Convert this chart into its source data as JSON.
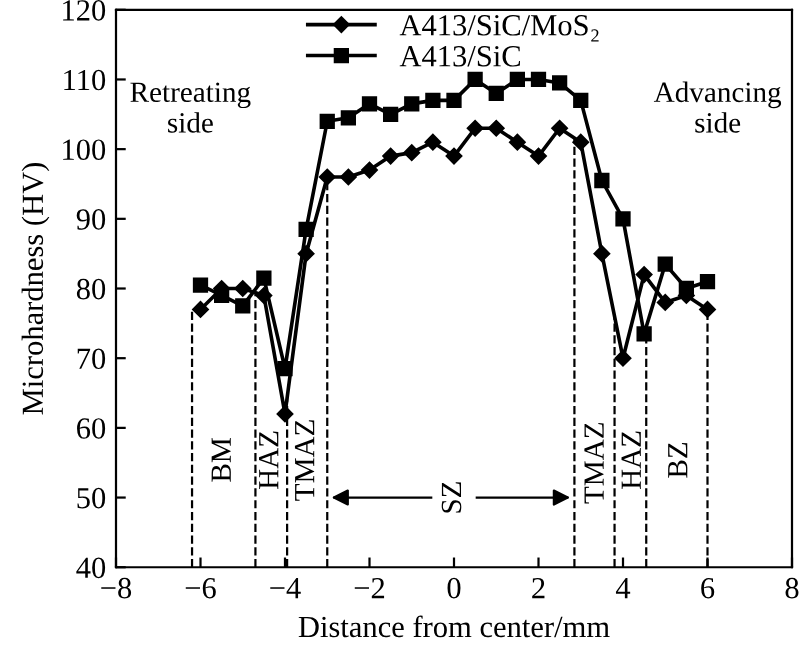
{
  "chart_data": {
    "type": "line",
    "xlabel": "Distance from center/mm",
    "ylabel": "Microhardness (HV)",
    "x": [
      -6,
      -5.5,
      -5,
      -4.5,
      -4,
      -3.5,
      -3,
      -2.5,
      -2,
      -1.5,
      -1,
      -0.5,
      0,
      0.5,
      1,
      1.5,
      2,
      2.5,
      3,
      3.5,
      4,
      4.5,
      5,
      5.5,
      6
    ],
    "series": [
      {
        "name": "A413/SiC/MoS₂",
        "color": "#000000",
        "marker": "diamond",
        "values": [
          77,
          80,
          80,
          79,
          62,
          85,
          96,
          96,
          97,
          99,
          99.5,
          101,
          99,
          103,
          103,
          101,
          99,
          103,
          101,
          85,
          70,
          82,
          78,
          79,
          77
        ]
      },
      {
        "name": "A413/SiC",
        "color": "#000000",
        "marker": "square",
        "values": [
          80.5,
          79,
          77.5,
          81.5,
          68.5,
          88.5,
          104,
          104.5,
          106.5,
          105,
          106.5,
          107,
          107,
          110,
          108,
          110,
          110,
          109.5,
          107,
          95.5,
          90,
          73.5,
          83.5,
          80,
          81
        ]
      }
    ],
    "xlim": [
      -8,
      8
    ],
    "xticks": [
      -8,
      -6,
      -4,
      -2,
      0,
      2,
      4,
      6,
      8
    ],
    "ylim": [
      40,
      120
    ],
    "yticks": [
      40,
      50,
      60,
      70,
      80,
      90,
      100,
      110,
      120
    ],
    "grid": false,
    "legend": "top",
    "line_style": "solid",
    "ref_lines": [
      {
        "axis": "x",
        "value": -6.2,
        "color": "#000000",
        "line_style": "dashed"
      },
      {
        "axis": "x",
        "value": -4.7,
        "color": "#000000",
        "line_style": "dashed"
      },
      {
        "axis": "x",
        "value": -3.95,
        "color": "#000000",
        "line_style": "dashed"
      },
      {
        "axis": "x",
        "value": -3,
        "color": "#000000",
        "line_style": "dashed"
      },
      {
        "axis": "x",
        "value": 2.85,
        "color": "#000000",
        "line_style": "dashed"
      },
      {
        "axis": "x",
        "value": 3.8,
        "color": "#000000",
        "line_style": "dashed"
      },
      {
        "axis": "x",
        "value": 4.55,
        "color": "#000000",
        "line_style": "dashed"
      },
      {
        "axis": "x",
        "value": 6,
        "color": "#000000",
        "line_style": "dashed"
      }
    ],
    "annotations": [
      "BM",
      "HAZ",
      "TMAZ",
      {
        "text": "SZ",
        "x": 0,
        "y": 50
      },
      {
        "text": "TMAZ",
        "x": 2.85,
        "y": 50
      },
      "HAZ",
      "BZ",
      "Retreating\nside",
      "Advancing\nside"
    ]
  }
}
